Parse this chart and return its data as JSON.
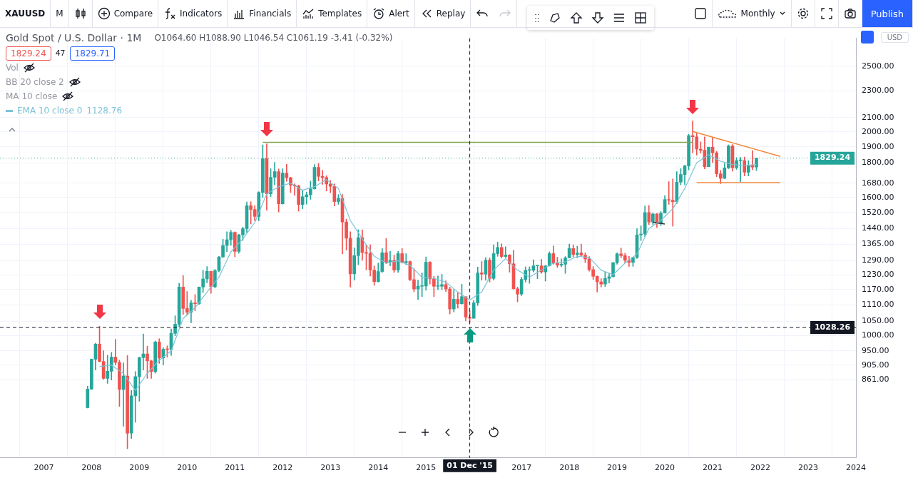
{
  "chart_data": {
    "type": "candlestick",
    "title": "Gold Spot / U.S. Dollar · 1M",
    "xlim": [
      "2006-02",
      "2024-01"
    ],
    "xticks": [
      "2007",
      "2008",
      "2009",
      "2010",
      "2011",
      "2012",
      "2013",
      "2014",
      "2015",
      "2017",
      "2018",
      "2019",
      "2020",
      "2021",
      "2022",
      "2023",
      "2024"
    ],
    "ylim": [
      660,
      2750
    ],
    "yticks": [
      {
        "value": 861,
        "label": "861.00"
      },
      {
        "value": 905,
        "label": "905.00"
      },
      {
        "value": 950,
        "label": "950.00"
      },
      {
        "value": 1000,
        "label": "1000.00"
      },
      {
        "value": 1050,
        "label": "1050.00"
      },
      {
        "value": 1110,
        "label": "1110.00"
      },
      {
        "value": 1170,
        "label": "1170.00"
      },
      {
        "value": 1230,
        "label": "1230.00"
      },
      {
        "value": 1290,
        "label": "1290.00"
      },
      {
        "value": 1365,
        "label": "1365.00"
      },
      {
        "value": 1440,
        "label": "1440.00"
      },
      {
        "value": 1520,
        "label": "1520.00"
      },
      {
        "value": 1600,
        "label": "1600.00"
      },
      {
        "value": 1680,
        "label": "1680.00"
      },
      {
        "value": 1800,
        "label": "1800.00"
      },
      {
        "value": 1900,
        "label": "1900.00"
      },
      {
        "value": 2000,
        "label": "2000.00"
      },
      {
        "value": 2100,
        "label": "2100.00"
      },
      {
        "value": 2300,
        "label": "2300.00"
      },
      {
        "value": 2500,
        "label": "2500.00"
      }
    ],
    "log": "y",
    "grid": true,
    "ref_lines": [
      {
        "axis": "y",
        "value": 1829.24,
        "label": "1829.24",
        "color": "#26a69a",
        "line_style": "dotted"
      },
      {
        "axis": "y",
        "value": 1028.26,
        "label": "1028.26",
        "color": "#131722",
        "line_style": "dashed"
      },
      {
        "axis": "x",
        "value": "2015-12",
        "label": "01 Dec '15",
        "color": "#131722",
        "line_style": "dashed"
      }
    ],
    "annotations": [
      "XAUUSD",
      "M",
      "Compare",
      "Indicators",
      "Financials",
      "Templates",
      "Alert",
      "Replay",
      "Monthly",
      "Publish",
      "USD",
      "O1064.60 H1088.90 L1046.54 C1061.19 -3.41 (-0.32%)",
      "1829.24",
      "47",
      "1829.71",
      "Vol",
      "BB 20 close 2",
      "MA 10 close",
      "1128.76"
    ],
    "series": [
      {
        "type": "candlestick",
        "colors": [
          "#26a69a",
          "#26a69a",
          "#26a69a",
          "#ef5350",
          "#ef5350",
          "#26a69a",
          "#26a69a",
          "#ef5350",
          "#ef5350",
          "#26a69a",
          "#ef5350",
          "#26a69a",
          "#26a69a",
          "#26a69a",
          "#26a69a",
          "#ef5350",
          "#ef5350",
          "#26a69a",
          "#ef5350",
          "#26a69a",
          "#ef5350",
          "#26a69a",
          "#26a69a",
          "#26a69a",
          "#ef5350",
          "#ef5350",
          "#26a69a",
          "#ef5350",
          "#26a69a",
          "#26a69a",
          "#26a69a",
          "#ef5350",
          "#26a69a",
          "#26a69a",
          "#26a69a",
          "#26a69a",
          "#26a69a",
          "#ef5350",
          "#26a69a",
          "#26a69a",
          "#26a69a",
          "#ef5350",
          "#ef5350",
          "#26a69a",
          "#26a69a",
          "#ef5350",
          "#26a69a",
          "#26a69a",
          "#ef5350",
          "#26a69a",
          "#ef5350",
          "#ef5350",
          "#ef5350",
          "#ef5350",
          "#26a69a",
          "#26a69a",
          "#26a69a",
          "#26a69a",
          "#ef5350",
          "#ef5350",
          "#ef5350",
          "#ef5350",
          "#ef5350",
          "#26a69a",
          "#ef5350",
          "#ef5350",
          "#ef5350",
          "#26a69a",
          "#26a69a",
          "#ef5350",
          "#ef5350",
          "#ef5350",
          "#ef5350",
          "#26a69a",
          "#26a69a",
          "#ef5350",
          "#26a69a",
          "#ef5350",
          "#26a69a",
          "#ef5350",
          "#26a69a",
          "#ef5350",
          "#ef5350",
          "#26a69a",
          "#26a69a",
          "#26a69a",
          "#ef5350",
          "#ef5350",
          "#26a69a",
          "#26a69a",
          "#ef5350",
          "#ef5350",
          "#26a69a",
          "#ef5350",
          "#26a69a",
          "#ef5350",
          "#ef5350",
          "#26a69a",
          "#26a69a",
          "#ef5350",
          "#26a69a",
          "#ef5350",
          "#26a69a",
          "#26a69a",
          "#ef5350",
          "#26a69a",
          "#ef5350",
          "#ef5350",
          "#ef5350",
          "#26a69a",
          "#26a69a",
          "#26a69a",
          "#26a69a",
          "#26a69a",
          "#ef5350",
          "#26a69a",
          "#26a69a",
          "#ef5350",
          "#ef5350",
          "#26a69a",
          "#26a69a",
          "#26a69a",
          "#ef5350",
          "#26a69a",
          "#ef5350",
          "#ef5350",
          "#ef5350",
          "#ef5350",
          "#ef5350",
          "#ef5350",
          "#26a69a",
          "#26a69a",
          "#26a69a",
          "#26a69a",
          "#ef5350",
          "#ef5350",
          "#ef5350",
          "#26a69a",
          "#26a69a",
          "#26a69a",
          "#26a69a",
          "#ef5350",
          "#26a69a",
          "#ef5350",
          "#26a69a",
          "#26a69a",
          "#ef5350",
          "#ef5350",
          "#26a69a",
          "#26a69a",
          "#26a69a",
          "#26a69a",
          "#ef5350",
          "#ef5350",
          "#ef5350",
          "#ef5350",
          "#26a69a",
          "#ef5350",
          "#ef5350",
          "#ef5350",
          "#26a69a",
          "#26a69a",
          "#ef5350",
          "#26a69a",
          "#26a69a",
          "#ef5350",
          "#26a69a",
          "#ef5350",
          "#26a69a"
        ],
        "x": [
          "2007-12",
          "2008-01",
          "2008-02",
          "2008-03",
          "2008-04",
          "2008-05",
          "2008-06",
          "2008-07",
          "2008-08",
          "2008-09",
          "2008-10",
          "2008-11",
          "2008-12",
          "2009-01",
          "2009-02",
          "2009-03",
          "2009-04",
          "2009-05",
          "2009-06",
          "2009-07",
          "2009-08",
          "2009-09",
          "2009-10",
          "2009-11",
          "2009-12",
          "2010-01",
          "2010-02",
          "2010-03",
          "2010-04",
          "2010-05",
          "2010-06",
          "2010-07",
          "2010-08",
          "2010-09",
          "2010-10",
          "2010-11",
          "2010-12",
          "2011-01",
          "2011-02",
          "2011-03",
          "2011-04",
          "2011-05",
          "2011-06",
          "2011-07",
          "2011-08",
          "2011-09",
          "2011-10",
          "2011-11",
          "2011-12",
          "2012-01",
          "2012-02",
          "2012-03",
          "2012-04",
          "2012-05",
          "2012-06",
          "2012-07",
          "2012-08",
          "2012-09",
          "2012-10",
          "2012-11",
          "2012-12",
          "2013-01",
          "2013-02",
          "2013-03",
          "2013-04",
          "2013-05",
          "2013-06",
          "2013-07",
          "2013-08",
          "2013-09",
          "2013-10",
          "2013-11",
          "2013-12",
          "2014-01",
          "2014-02",
          "2014-03",
          "2014-04",
          "2014-05",
          "2014-06",
          "2014-07",
          "2014-08",
          "2014-09",
          "2014-10",
          "2014-11",
          "2014-12",
          "2015-01",
          "2015-02",
          "2015-03",
          "2015-04",
          "2015-05",
          "2015-06",
          "2015-07",
          "2015-08",
          "2015-09",
          "2015-10",
          "2015-11",
          "2015-12",
          "2016-01",
          "2016-02",
          "2016-03",
          "2016-04",
          "2016-05",
          "2016-06",
          "2016-07",
          "2016-08",
          "2016-09",
          "2016-10",
          "2016-11",
          "2016-12",
          "2017-01",
          "2017-02",
          "2017-03",
          "2017-04",
          "2017-05",
          "2017-06",
          "2017-07",
          "2017-08",
          "2017-09",
          "2017-10",
          "2017-11",
          "2017-12",
          "2018-01",
          "2018-02",
          "2018-03",
          "2018-04",
          "2018-05",
          "2018-06",
          "2018-07",
          "2018-08",
          "2018-09",
          "2018-10",
          "2018-11",
          "2018-12",
          "2019-01",
          "2019-02",
          "2019-03",
          "2019-04",
          "2019-05",
          "2019-06",
          "2019-07",
          "2019-08",
          "2019-09",
          "2019-10",
          "2019-11",
          "2019-12",
          "2020-01",
          "2020-02",
          "2020-03",
          "2020-04",
          "2020-05",
          "2020-06",
          "2020-07",
          "2020-08",
          "2020-09",
          "2020-10",
          "2020-11",
          "2020-12",
          "2021-01",
          "2021-02",
          "2021-03",
          "2021-04",
          "2021-05",
          "2021-06",
          "2021-07",
          "2021-08",
          "2021-09",
          "2021-10",
          "2021-11",
          "2021-12"
        ],
        "ohlc": [
          [
            783,
            842,
            782,
            834
          ],
          [
            834,
            924,
            833,
            923
          ],
          [
            923,
            975,
            890,
            972
          ],
          [
            972,
            1033,
            915,
            916
          ],
          [
            916,
            950,
            862,
            865
          ],
          [
            865,
            936,
            850,
            886
          ],
          [
            886,
            945,
            860,
            930
          ],
          [
            930,
            988,
            905,
            913
          ],
          [
            913,
            920,
            786,
            833
          ],
          [
            833,
            912,
            735,
            872
          ],
          [
            872,
            935,
            681,
            718
          ],
          [
            718,
            830,
            705,
            815
          ],
          [
            815,
            885,
            745,
            870
          ],
          [
            870,
            930,
            800,
            928
          ],
          [
            928,
            1006,
            890,
            940
          ],
          [
            940,
            965,
            865,
            918
          ],
          [
            918,
            920,
            865,
            885
          ],
          [
            885,
            982,
            880,
            979
          ],
          [
            979,
            990,
            910,
            927
          ],
          [
            927,
            960,
            905,
            955
          ],
          [
            955,
            966,
            930,
            954
          ],
          [
            954,
            1023,
            935,
            1008
          ],
          [
            1008,
            1070,
            1000,
            1040
          ],
          [
            1040,
            1195,
            1030,
            1180
          ],
          [
            1180,
            1227,
            1075,
            1097
          ],
          [
            1097,
            1162,
            1072,
            1083
          ],
          [
            1083,
            1128,
            1045,
            1118
          ],
          [
            1118,
            1150,
            1088,
            1115
          ],
          [
            1115,
            1181,
            1112,
            1180
          ],
          [
            1180,
            1249,
            1158,
            1213
          ],
          [
            1213,
            1265,
            1197,
            1245
          ],
          [
            1245,
            1245,
            1155,
            1181
          ],
          [
            1181,
            1253,
            1176,
            1248
          ],
          [
            1248,
            1310,
            1242,
            1307
          ],
          [
            1307,
            1388,
            1305,
            1359
          ],
          [
            1359,
            1424,
            1330,
            1386
          ],
          [
            1386,
            1431,
            1360,
            1421
          ],
          [
            1421,
            1424,
            1308,
            1332
          ],
          [
            1332,
            1412,
            1324,
            1409
          ],
          [
            1409,
            1447,
            1383,
            1439
          ],
          [
            1439,
            1576,
            1420,
            1556
          ],
          [
            1556,
            1577,
            1462,
            1536
          ],
          [
            1536,
            1556,
            1478,
            1500
          ],
          [
            1500,
            1632,
            1478,
            1628
          ],
          [
            1628,
            1913,
            1600,
            1826
          ],
          [
            1826,
            1921,
            1532,
            1620
          ],
          [
            1620,
            1764,
            1604,
            1714
          ],
          [
            1714,
            1803,
            1670,
            1747
          ],
          [
            1747,
            1763,
            1523,
            1566
          ],
          [
            1566,
            1764,
            1564,
            1739
          ],
          [
            1739,
            1791,
            1690,
            1711
          ],
          [
            1711,
            1715,
            1627,
            1669
          ],
          [
            1669,
            1676,
            1611,
            1664
          ],
          [
            1664,
            1669,
            1527,
            1562
          ],
          [
            1562,
            1640,
            1540,
            1604
          ],
          [
            1604,
            1630,
            1564,
            1615
          ],
          [
            1615,
            1692,
            1590,
            1648
          ],
          [
            1648,
            1790,
            1646,
            1773
          ],
          [
            1773,
            1796,
            1692,
            1719
          ],
          [
            1719,
            1755,
            1673,
            1712
          ],
          [
            1712,
            1723,
            1636,
            1675
          ],
          [
            1675,
            1695,
            1626,
            1662
          ],
          [
            1662,
            1675,
            1555,
            1578
          ],
          [
            1578,
            1616,
            1563,
            1596
          ],
          [
            1596,
            1617,
            1321,
            1472
          ],
          [
            1472,
            1487,
            1338,
            1393
          ],
          [
            1393,
            1424,
            1180,
            1234
          ],
          [
            1234,
            1348,
            1208,
            1313
          ],
          [
            1313,
            1434,
            1273,
            1396
          ],
          [
            1396,
            1434,
            1292,
            1327
          ],
          [
            1327,
            1361,
            1251,
            1323
          ],
          [
            1323,
            1362,
            1225,
            1250
          ],
          [
            1250,
            1268,
            1187,
            1202
          ],
          [
            1202,
            1280,
            1200,
            1244
          ],
          [
            1244,
            1345,
            1240,
            1326
          ],
          [
            1326,
            1392,
            1277,
            1284
          ],
          [
            1284,
            1332,
            1268,
            1292
          ],
          [
            1292,
            1315,
            1240,
            1250
          ],
          [
            1250,
            1332,
            1240,
            1322
          ],
          [
            1322,
            1345,
            1280,
            1282
          ],
          [
            1282,
            1322,
            1273,
            1287
          ],
          [
            1287,
            1289,
            1206,
            1210
          ],
          [
            1210,
            1255,
            1161,
            1172
          ],
          [
            1172,
            1208,
            1131,
            1183
          ],
          [
            1183,
            1238,
            1142,
            1184
          ],
          [
            1184,
            1307,
            1167,
            1284
          ],
          [
            1284,
            1287,
            1192,
            1213
          ],
          [
            1213,
            1224,
            1142,
            1183
          ],
          [
            1183,
            1225,
            1170,
            1183
          ],
          [
            1183,
            1232,
            1169,
            1190
          ],
          [
            1190,
            1205,
            1162,
            1172
          ],
          [
            1172,
            1180,
            1077,
            1095
          ],
          [
            1095,
            1170,
            1084,
            1132
          ],
          [
            1132,
            1157,
            1098,
            1115
          ],
          [
            1115,
            1191,
            1113,
            1142
          ],
          [
            1142,
            1142,
            1052,
            1065
          ],
          [
            1064.6,
            1088.9,
            1046.54,
            1061.19
          ],
          [
            1061,
            1128,
            1061,
            1118
          ],
          [
            1118,
            1263,
            1108,
            1238
          ],
          [
            1238,
            1287,
            1208,
            1233
          ],
          [
            1233,
            1304,
            1207,
            1293
          ],
          [
            1293,
            1303,
            1200,
            1215
          ],
          [
            1215,
            1362,
            1208,
            1322
          ],
          [
            1322,
            1375,
            1310,
            1350
          ],
          [
            1350,
            1367,
            1302,
            1309
          ],
          [
            1309,
            1353,
            1304,
            1316
          ],
          [
            1316,
            1318,
            1241,
            1277
          ],
          [
            1277,
            1338,
            1171,
            1173
          ],
          [
            1173,
            1180,
            1122,
            1152
          ],
          [
            1152,
            1220,
            1146,
            1211
          ],
          [
            1211,
            1264,
            1200,
            1249
          ],
          [
            1249,
            1264,
            1195,
            1249
          ],
          [
            1249,
            1295,
            1242,
            1268
          ],
          [
            1268,
            1271,
            1214,
            1268
          ],
          [
            1268,
            1296,
            1236,
            1242
          ],
          [
            1242,
            1270,
            1204,
            1268
          ],
          [
            1268,
            1330,
            1267,
            1322
          ],
          [
            1322,
            1357,
            1275,
            1280
          ],
          [
            1280,
            1306,
            1261,
            1271
          ],
          [
            1271,
            1299,
            1264,
            1275
          ],
          [
            1275,
            1309,
            1236,
            1303
          ],
          [
            1303,
            1366,
            1302,
            1345
          ],
          [
            1345,
            1362,
            1307,
            1318
          ],
          [
            1318,
            1356,
            1303,
            1325
          ],
          [
            1325,
            1366,
            1310,
            1315
          ],
          [
            1315,
            1326,
            1282,
            1298
          ],
          [
            1298,
            1309,
            1245,
            1252
          ],
          [
            1252,
            1265,
            1211,
            1224
          ],
          [
            1224,
            1225,
            1160,
            1201
          ],
          [
            1201,
            1214,
            1180,
            1192
          ],
          [
            1192,
            1243,
            1182,
            1215
          ],
          [
            1215,
            1237,
            1196,
            1222
          ],
          [
            1222,
            1284,
            1221,
            1282
          ],
          [
            1282,
            1326,
            1275,
            1321
          ],
          [
            1321,
            1347,
            1303,
            1313
          ],
          [
            1313,
            1324,
            1280,
            1292
          ],
          [
            1292,
            1310,
            1266,
            1283
          ],
          [
            1283,
            1306,
            1266,
            1305
          ],
          [
            1305,
            1439,
            1300,
            1409
          ],
          [
            1409,
            1453,
            1382,
            1413
          ],
          [
            1413,
            1555,
            1400,
            1520
          ],
          [
            1520,
            1557,
            1459,
            1472
          ],
          [
            1472,
            1518,
            1459,
            1513
          ],
          [
            1513,
            1516,
            1445,
            1464
          ],
          [
            1464,
            1525,
            1454,
            1517
          ],
          [
            1517,
            1611,
            1517,
            1589
          ],
          [
            1589,
            1689,
            1563,
            1585
          ],
          [
            1585,
            1704,
            1451,
            1577
          ],
          [
            1577,
            1747,
            1567,
            1686
          ],
          [
            1686,
            1765,
            1670,
            1730
          ],
          [
            1730,
            1786,
            1671,
            1781
          ],
          [
            1781,
            1984,
            1757,
            1975
          ],
          [
            1975,
            2075,
            1863,
            1967
          ],
          [
            1967,
            1992,
            1848,
            1886
          ],
          [
            1886,
            1933,
            1860,
            1879
          ],
          [
            1879,
            1966,
            1764,
            1777
          ],
          [
            1777,
            1900,
            1776,
            1898
          ],
          [
            1898,
            1959,
            1802,
            1863
          ],
          [
            1863,
            1872,
            1717,
            1734
          ],
          [
            1734,
            1755,
            1677,
            1708
          ],
          [
            1708,
            1798,
            1706,
            1769
          ],
          [
            1769,
            1913,
            1765,
            1907
          ],
          [
            1907,
            1916,
            1750,
            1770
          ],
          [
            1770,
            1833,
            1761,
            1814
          ],
          [
            1814,
            1834,
            1688,
            1814
          ],
          [
            1814,
            1836,
            1721,
            1743
          ],
          [
            1743,
            1814,
            1721,
            1783
          ],
          [
            1783,
            1877,
            1758,
            1774
          ],
          [
            1774,
            1831,
            1753,
            1829
          ]
        ]
      },
      {
        "type": "line",
        "name": "EMA 10 close 0",
        "color": "#7cc3d8",
        "x": [
          "2008-03",
          "2008-06",
          "2008-09",
          "2008-12",
          "2009-03",
          "2009-06",
          "2009-09",
          "2009-12",
          "2010-03",
          "2010-06",
          "2010-09",
          "2010-12",
          "2011-03",
          "2011-06",
          "2011-09",
          "2011-12",
          "2012-03",
          "2012-06",
          "2012-09",
          "2012-12",
          "2013-03",
          "2013-06",
          "2013-09",
          "2013-12",
          "2014-03",
          "2014-06",
          "2014-09",
          "2014-12",
          "2015-03",
          "2015-06",
          "2015-09",
          "2015-12",
          "2016-03",
          "2016-06",
          "2016-09",
          "2016-12",
          "2017-03",
          "2017-06",
          "2017-09",
          "2017-12",
          "2018-03",
          "2018-06",
          "2018-09",
          "2018-12",
          "2019-03",
          "2019-06",
          "2019-09",
          "2019-12",
          "2020-03",
          "2020-06",
          "2020-09",
          "2020-12",
          "2021-03",
          "2021-06",
          "2021-09",
          "2021-12"
        ],
        "values": [
          900,
          905,
          880,
          830,
          880,
          920,
          950,
          1060,
          1100,
          1160,
          1220,
          1330,
          1390,
          1470,
          1620,
          1660,
          1680,
          1640,
          1660,
          1700,
          1650,
          1480,
          1390,
          1310,
          1280,
          1290,
          1270,
          1220,
          1215,
          1200,
          1160,
          1129,
          1160,
          1250,
          1300,
          1250,
          1220,
          1250,
          1280,
          1285,
          1310,
          1305,
          1250,
          1230,
          1280,
          1320,
          1440,
          1480,
          1540,
          1650,
          1800,
          1850,
          1810,
          1790,
          1785,
          1790
        ]
      },
      {
        "type": "line",
        "color": "#7fa650",
        "x": [
          "2011-08",
          "2020-08"
        ],
        "values": [
          1930,
          1930
        ]
      },
      {
        "type": "line",
        "color": "#f0883e",
        "x": [
          "2020-08",
          "2022-06"
        ],
        "values": [
          2003,
          1840
        ]
      },
      {
        "type": "line",
        "color": "#f0883e",
        "x": [
          "2020-09",
          "2022-06"
        ],
        "values": [
          1683,
          1683
        ]
      },
      {
        "type": "line",
        "color": "#333333",
        "x": [
          "2019-10",
          "2020-01"
        ],
        "values": [
          1471,
          1462
        ]
      }
    ]
  }
}
